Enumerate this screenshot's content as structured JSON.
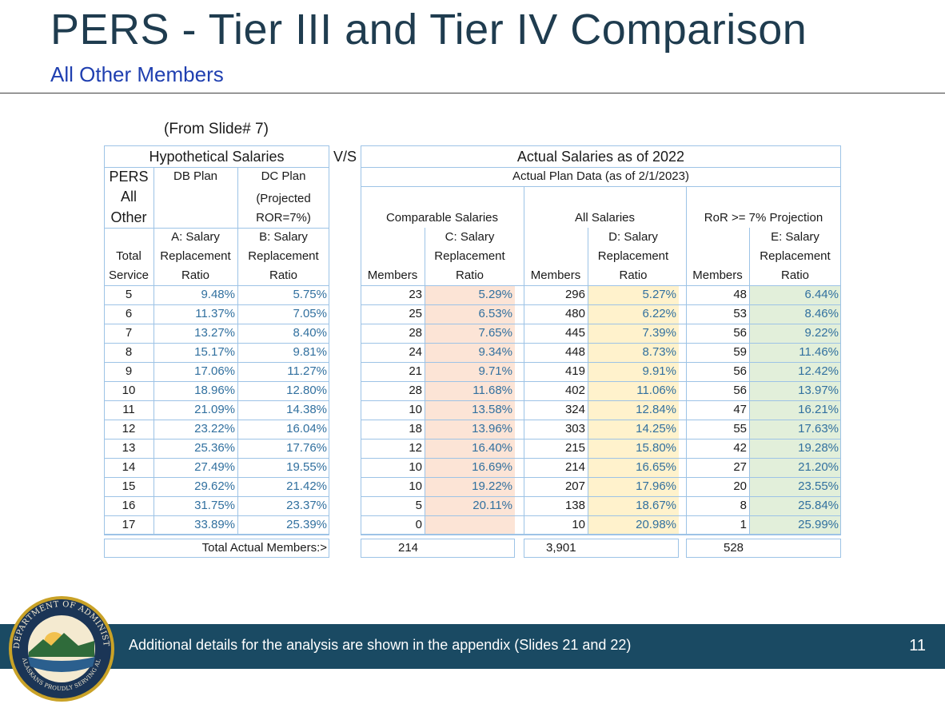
{
  "header": {
    "title": "PERS - Tier III and Tier IV Comparison",
    "subtitle": "All Other Members",
    "from_slide": "(From Slide# 7)"
  },
  "table": {
    "hypo_header": "Hypothetical Salaries",
    "vs": "V/S",
    "actual_header": "Actual Salaries as of 2022",
    "actual_sub": "Actual Plan Data (as of 2/1/2023)",
    "pers": [
      "PERS",
      "All",
      "Other"
    ],
    "db_plan": "DB Plan",
    "dc_plan": "DC Plan",
    "projected": [
      "(Projected",
      "ROR=7%)"
    ],
    "comparable": "Comparable Salaries",
    "all_salaries": "All Salaries",
    "ror_projection": "RoR >= 7% Projection",
    "col_service": [
      "Total",
      "Service"
    ],
    "col_a": [
      "A: Salary",
      "Replacement",
      "Ratio"
    ],
    "col_b": [
      "B: Salary",
      "Replacement",
      "Ratio"
    ],
    "col_c": [
      "C: Salary",
      "Replacement",
      "Ratio"
    ],
    "col_d": [
      "D: Salary",
      "Replacement",
      "Ratio"
    ],
    "col_e": [
      "E: Salary",
      "Replacement",
      "Ratio"
    ],
    "members_label": "Members",
    "rows": [
      {
        "service": "5",
        "a": "9.48%",
        "b": "5.75%",
        "m1": "23",
        "c": "5.29%",
        "m2": "296",
        "d": "5.27%",
        "m3": "48",
        "e": "6.44%"
      },
      {
        "service": "6",
        "a": "11.37%",
        "b": "7.05%",
        "m1": "25",
        "c": "6.53%",
        "m2": "480",
        "d": "6.22%",
        "m3": "53",
        "e": "8.46%"
      },
      {
        "service": "7",
        "a": "13.27%",
        "b": "8.40%",
        "m1": "28",
        "c": "7.65%",
        "m2": "445",
        "d": "7.39%",
        "m3": "56",
        "e": "9.22%"
      },
      {
        "service": "8",
        "a": "15.17%",
        "b": "9.81%",
        "m1": "24",
        "c": "9.34%",
        "m2": "448",
        "d": "8.73%",
        "m3": "59",
        "e": "11.46%"
      },
      {
        "service": "9",
        "a": "17.06%",
        "b": "11.27%",
        "m1": "21",
        "c": "9.71%",
        "m2": "419",
        "d": "9.91%",
        "m3": "56",
        "e": "12.42%"
      },
      {
        "service": "10",
        "a": "18.96%",
        "b": "12.80%",
        "m1": "28",
        "c": "11.68%",
        "m2": "402",
        "d": "11.06%",
        "m3": "56",
        "e": "13.97%"
      },
      {
        "service": "11",
        "a": "21.09%",
        "b": "14.38%",
        "m1": "10",
        "c": "13.58%",
        "m2": "324",
        "d": "12.84%",
        "m3": "47",
        "e": "16.21%"
      },
      {
        "service": "12",
        "a": "23.22%",
        "b": "16.04%",
        "m1": "18",
        "c": "13.96%",
        "m2": "303",
        "d": "14.25%",
        "m3": "55",
        "e": "17.63%"
      },
      {
        "service": "13",
        "a": "25.36%",
        "b": "17.76%",
        "m1": "12",
        "c": "16.40%",
        "m2": "215",
        "d": "15.80%",
        "m3": "42",
        "e": "19.28%"
      },
      {
        "service": "14",
        "a": "27.49%",
        "b": "19.55%",
        "m1": "10",
        "c": "16.69%",
        "m2": "214",
        "d": "16.65%",
        "m3": "27",
        "e": "21.20%"
      },
      {
        "service": "15",
        "a": "29.62%",
        "b": "21.42%",
        "m1": "10",
        "c": "19.22%",
        "m2": "207",
        "d": "17.96%",
        "m3": "20",
        "e": "23.55%"
      },
      {
        "service": "16",
        "a": "31.75%",
        "b": "23.37%",
        "m1": "5",
        "c": "20.11%",
        "m2": "138",
        "d": "18.67%",
        "m3": "8",
        "e": "25.84%"
      },
      {
        "service": "17",
        "a": "33.89%",
        "b": "25.39%",
        "m1": "0",
        "c": "",
        "m2": "10",
        "d": "20.98%",
        "m3": "1",
        "e": "25.99%"
      }
    ],
    "total_label": "Total Actual Members:>",
    "total_comparable": "214",
    "total_all": "3,901",
    "total_ror": "528"
  },
  "footer": {
    "note": "Additional details for the analysis are shown in the appendix (Slides 21 and 22)",
    "page_number": "11",
    "seal_text_top": "DEPARTMENT OF ADMINISTRATION",
    "seal_text_bottom": "ALASKANS PROUDLY SERVING ALASKANS"
  },
  "colors": {
    "title": "#1f3c4f",
    "subtitle": "#1f3fb0",
    "grid": "#9dc3e6",
    "value_text": "#31709f",
    "fill_c": "#fce4d6",
    "fill_d": "#fff2cc",
    "fill_e": "#e2efda",
    "footer_band": "#1a4a63"
  }
}
